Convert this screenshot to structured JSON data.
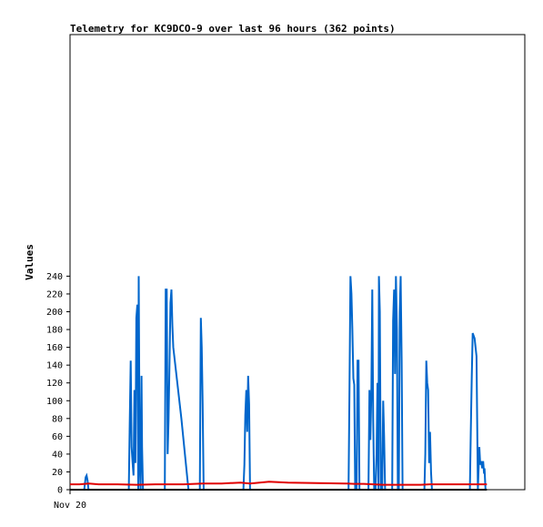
{
  "chart_data": {
    "type": "line",
    "title": "Telemetry for KC9DCO-9 over last 96 hours (362 points)",
    "ylabel": "Values",
    "xlabel": "",
    "ylim": [
      0,
      255
    ],
    "yticks": [
      0,
      20,
      40,
      60,
      80,
      100,
      120,
      140,
      160,
      180,
      200,
      220,
      240
    ],
    "xlim": [
      0,
      96
    ],
    "xticks": [
      {
        "x": 0,
        "label": "Nov 20"
      }
    ],
    "grid": false,
    "legend": "none",
    "colors": {
      "series_blue": "#0066cc",
      "series_red": "#e00000",
      "series_black": "#000000"
    },
    "series": [
      {
        "color": "#0066cc",
        "points": [
          [
            3.0,
            0
          ],
          [
            3.3,
            14
          ],
          [
            3.5,
            16
          ],
          [
            3.7,
            10
          ],
          [
            3.9,
            0
          ],
          [
            12.4,
            0
          ],
          [
            12.6,
            72
          ],
          [
            12.8,
            145
          ],
          [
            13.0,
            48
          ],
          [
            13.2,
            30
          ],
          [
            13.4,
            16
          ],
          [
            13.6,
            112
          ],
          [
            13.8,
            30
          ],
          [
            14.0,
            193
          ],
          [
            14.2,
            208
          ],
          [
            14.4,
            0
          ],
          [
            14.5,
            240
          ],
          [
            14.7,
            30
          ],
          [
            14.9,
            0
          ],
          [
            15.1,
            128
          ],
          [
            15.2,
            48
          ],
          [
            15.4,
            0
          ],
          [
            20.0,
            0
          ],
          [
            20.2,
            225
          ],
          [
            20.4,
            225
          ],
          [
            20.6,
            40
          ],
          [
            20.8,
            78
          ],
          [
            21.0,
            145
          ],
          [
            21.2,
            210
          ],
          [
            21.4,
            225
          ],
          [
            21.6,
            185
          ],
          [
            21.8,
            160
          ],
          [
            23.5,
            80
          ],
          [
            25.0,
            0
          ],
          [
            27.4,
            0
          ],
          [
            27.6,
            193
          ],
          [
            27.8,
            160
          ],
          [
            28.0,
            96
          ],
          [
            28.2,
            0
          ],
          [
            36.6,
            0
          ],
          [
            36.8,
            28
          ],
          [
            37.0,
            84
          ],
          [
            37.2,
            112
          ],
          [
            37.4,
            65
          ],
          [
            37.6,
            128
          ],
          [
            37.8,
            96
          ],
          [
            38.0,
            0
          ],
          [
            58.8,
            0
          ],
          [
            59.0,
            120
          ],
          [
            59.2,
            240
          ],
          [
            59.4,
            220
          ],
          [
            59.6,
            180
          ],
          [
            59.8,
            125
          ],
          [
            60.0,
            118
          ],
          [
            60.2,
            0
          ],
          [
            60.5,
            0
          ],
          [
            60.7,
            145
          ],
          [
            60.9,
            145
          ],
          [
            61.1,
            0
          ],
          [
            63.0,
            0
          ],
          [
            63.2,
            112
          ],
          [
            63.4,
            56
          ],
          [
            63.6,
            110
          ],
          [
            63.8,
            225
          ],
          [
            64.0,
            80
          ],
          [
            64.2,
            0
          ],
          [
            64.5,
            0
          ],
          [
            64.7,
            40
          ],
          [
            64.9,
            120
          ],
          [
            65.1,
            0
          ],
          [
            65.2,
            240
          ],
          [
            65.4,
            200
          ],
          [
            65.6,
            0
          ],
          [
            65.9,
            0
          ],
          [
            66.1,
            100
          ],
          [
            66.3,
            60
          ],
          [
            66.5,
            0
          ],
          [
            68.0,
            0
          ],
          [
            68.2,
            190
          ],
          [
            68.4,
            225
          ],
          [
            68.6,
            130
          ],
          [
            68.8,
            240
          ],
          [
            69.0,
            180
          ],
          [
            69.2,
            0
          ],
          [
            69.4,
            0
          ],
          [
            69.6,
            200
          ],
          [
            69.8,
            240
          ],
          [
            70.0,
            145
          ],
          [
            70.2,
            0
          ],
          [
            74.8,
            0
          ],
          [
            75.0,
            40
          ],
          [
            75.2,
            145
          ],
          [
            75.4,
            120
          ],
          [
            75.6,
            112
          ],
          [
            75.8,
            30
          ],
          [
            76.0,
            65
          ],
          [
            76.2,
            20
          ],
          [
            76.4,
            0
          ],
          [
            84.4,
            0
          ],
          [
            84.6,
            65
          ],
          [
            84.8,
            128
          ],
          [
            85.0,
            176
          ],
          [
            85.4,
            170
          ],
          [
            85.8,
            150
          ],
          [
            86.1,
            0
          ],
          [
            86.4,
            48
          ],
          [
            86.6,
            28
          ],
          [
            86.8,
            32
          ],
          [
            87.0,
            24
          ],
          [
            87.2,
            32
          ],
          [
            87.4,
            18
          ],
          [
            87.5,
            24
          ],
          [
            87.7,
            0
          ]
        ]
      },
      {
        "color": "#e00000",
        "points": [
          [
            0,
            6
          ],
          [
            2,
            6
          ],
          [
            4,
            7
          ],
          [
            6,
            6
          ],
          [
            10,
            6
          ],
          [
            14,
            5.5
          ],
          [
            18,
            6
          ],
          [
            24,
            6
          ],
          [
            28,
            7
          ],
          [
            32,
            7
          ],
          [
            36,
            8
          ],
          [
            38,
            7
          ],
          [
            42,
            9
          ],
          [
            46,
            8
          ],
          [
            52,
            7.5
          ],
          [
            58,
            7
          ],
          [
            60,
            6.5
          ],
          [
            62,
            6.5
          ],
          [
            66,
            5.5
          ],
          [
            70,
            5.5
          ],
          [
            74,
            5.5
          ],
          [
            76,
            6
          ],
          [
            80,
            6
          ],
          [
            84,
            6
          ],
          [
            88,
            6
          ]
        ]
      },
      {
        "color": "#000000",
        "points": [
          [
            0,
            0
          ],
          [
            88,
            0
          ]
        ]
      }
    ]
  }
}
